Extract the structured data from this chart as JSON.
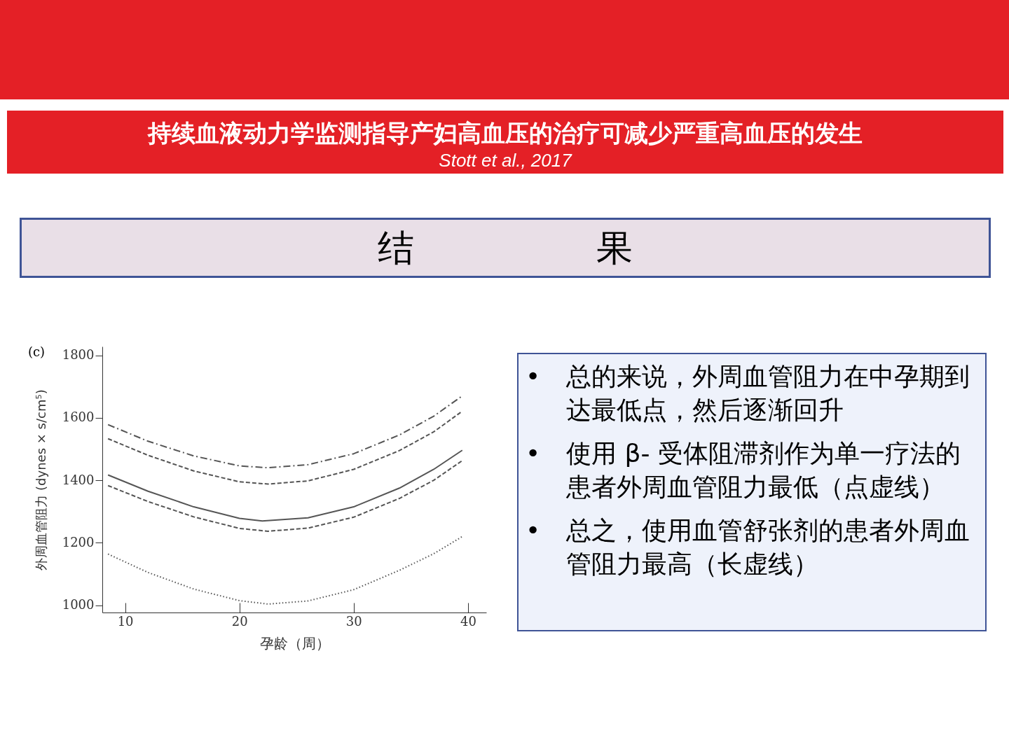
{
  "chart_data": {
    "type": "line",
    "title": "持续血液动力学监测指导产妇高血压的治疗可减少严重高血压的发生",
    "subtitle": "Stott et al., 2017",
    "xlabel": "孕龄（周）",
    "ylabel": "外周血管阻力 (dynes × s/cm⁵)",
    "annotations": [
      "结　　　　　果",
      "•\t总的来说，外周血管阻力在中孕期到达最低点，然后逐渐回升",
      "•\t使用 β- 受体阻滞剂作为单一疗法的患者外周血管阻力最低（点虚线）",
      "•\t总之，使用血管舒张剂的患者外周血管阻力最高（长虚线）",
      "(c)"
    ],
    "series": [
      {
        "color": "#555555",
        "line_style": "dashdot",
        "x": [
          8.5,
          12,
          16,
          20,
          22.5,
          26,
          30,
          34,
          37,
          39.5
        ],
        "values": [
          1578,
          1525,
          1478,
          1446,
          1440,
          1450,
          1485,
          1545,
          1605,
          1670
        ]
      },
      {
        "color": "#555555",
        "line_style": "dashed",
        "x": [
          8.5,
          12,
          16,
          20,
          22.5,
          26,
          30,
          34,
          37,
          39.5
        ],
        "values": [
          1533,
          1480,
          1430,
          1395,
          1388,
          1398,
          1435,
          1495,
          1555,
          1621
        ]
      },
      {
        "color": "#555555",
        "line_style": "solid",
        "x": [
          8.5,
          12,
          16,
          20,
          22,
          26,
          30,
          34,
          37,
          39.5
        ],
        "values": [
          1417,
          1365,
          1315,
          1278,
          1270,
          1280,
          1315,
          1375,
          1435,
          1496
        ]
      },
      {
        "color": "#555555",
        "line_style": "dashed",
        "x": [
          8.5,
          12,
          16,
          20,
          22.5,
          26,
          30,
          34,
          37,
          39.5
        ],
        "values": [
          1383,
          1332,
          1283,
          1246,
          1237,
          1247,
          1282,
          1342,
          1400,
          1463
        ]
      },
      {
        "color": "#555555",
        "line_style": "dotted",
        "x": [
          8.5,
          12,
          16,
          20,
          22.5,
          26,
          30,
          34,
          37,
          39.5
        ],
        "values": [
          1164,
          1105,
          1052,
          1015,
          1004,
          1014,
          1050,
          1112,
          1165,
          1220
        ]
      }
    ],
    "xlim": [
      8,
      41.6
    ],
    "ylim": [
      977,
      1828
    ],
    "xticks": [
      10,
      20,
      30,
      40
    ],
    "yticks": [
      1000,
      1200,
      1400,
      1600,
      1800
    ],
    "grid": false,
    "marker": "none"
  }
}
